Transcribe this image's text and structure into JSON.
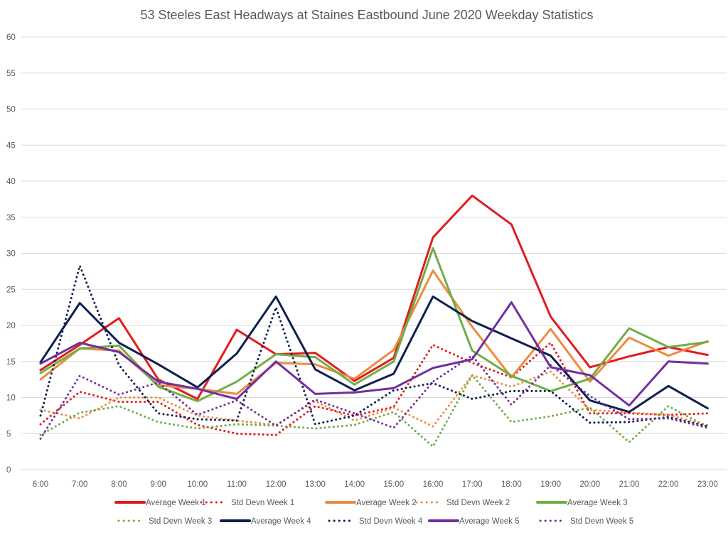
{
  "chart_data": {
    "type": "line",
    "title": "53 Steeles East Headways at Staines Eastbound June 2020 Weekday Statistics",
    "xlabel": "",
    "ylabel": "",
    "ylim": [
      0,
      60
    ],
    "yticks": [
      0,
      5,
      10,
      15,
      20,
      25,
      30,
      35,
      40,
      45,
      50,
      55,
      60
    ],
    "grid": true,
    "legend_position": "bottom",
    "categories": [
      "6:00",
      "7:00",
      "8:00",
      "9:00",
      "10:00",
      "11:00",
      "12:00",
      "13:00",
      "14:00",
      "15:00",
      "16:00",
      "17:00",
      "18:00",
      "19:00",
      "20:00",
      "21:00",
      "22:00",
      "23:00"
    ],
    "series": [
      {
        "name": "Average Week 1",
        "color": "#e31a1c",
        "style": "solid",
        "values": [
          13.8,
          17.3,
          21.0,
          12.5,
          9.8,
          19.4,
          16.0,
          16.2,
          12.3,
          15.5,
          32.2,
          38.0,
          34.0,
          21.2,
          14.2,
          15.7,
          17.0,
          15.9
        ]
      },
      {
        "name": "Std Devn Week 1",
        "color": "#e31a1c",
        "style": "dotted",
        "values": [
          6.3,
          10.8,
          9.4,
          9.4,
          6.2,
          5.0,
          4.8,
          8.8,
          7.5,
          8.7,
          17.3,
          14.8,
          12.8,
          17.6,
          7.8,
          7.8,
          7.6,
          7.8
        ]
      },
      {
        "name": "Average Week 2",
        "color": "#ed8b3f",
        "style": "solid",
        "values": [
          12.5,
          16.8,
          16.5,
          11.7,
          11.2,
          10.5,
          14.8,
          14.6,
          12.6,
          16.6,
          27.6,
          19.8,
          12.8,
          19.5,
          12.2,
          18.3,
          15.8,
          17.8
        ]
      },
      {
        "name": "Std Devn Week 2",
        "color": "#ed8b3f",
        "style": "dotted",
        "values": [
          8.3,
          7.1,
          10.0,
          10.0,
          7.5,
          6.8,
          6.2,
          9.5,
          6.8,
          8.6,
          6.0,
          13.1,
          11.5,
          13.6,
          8.3,
          7.9,
          7.6,
          6.2
        ]
      },
      {
        "name": "Average Week 3",
        "color": "#70ad47",
        "style": "solid",
        "values": [
          13.4,
          16.8,
          17.2,
          11.5,
          9.5,
          12.2,
          16.0,
          15.6,
          11.8,
          15.0,
          30.7,
          16.5,
          13.0,
          10.9,
          12.6,
          19.6,
          17.0,
          17.7
        ]
      },
      {
        "name": "Std Devn Week 3",
        "color": "#70ad47",
        "style": "dotted",
        "values": [
          4.8,
          7.9,
          8.8,
          6.6,
          5.7,
          6.3,
          6.1,
          5.7,
          6.2,
          8.0,
          3.2,
          13.1,
          6.6,
          7.4,
          8.6,
          3.8,
          8.8,
          5.9
        ]
      },
      {
        "name": "Average Week 4",
        "color": "#0d1f4f",
        "style": "solid",
        "values": [
          14.9,
          23.1,
          17.6,
          14.6,
          11.4,
          16.1,
          24.0,
          13.9,
          11.0,
          13.3,
          24.0,
          20.6,
          18.2,
          15.8,
          9.6,
          8.0,
          11.6,
          8.5
        ]
      },
      {
        "name": "Std Devn Week 4",
        "color": "#0d1f4f",
        "style": "dotted",
        "values": [
          7.5,
          28.3,
          14.5,
          7.8,
          7.0,
          6.8,
          22.5,
          6.3,
          7.5,
          11.0,
          12.0,
          9.8,
          10.9,
          10.9,
          6.5,
          6.6,
          7.3,
          6.0
        ]
      },
      {
        "name": "Average Week 5",
        "color": "#7030a0",
        "style": "solid",
        "values": [
          14.7,
          17.6,
          16.3,
          12.2,
          11.2,
          9.8,
          15.0,
          10.5,
          10.7,
          11.3,
          14.1,
          15.3,
          23.2,
          14.2,
          13.1,
          8.9,
          15.0,
          14.7
        ]
      },
      {
        "name": "Std Devn Week 5",
        "color": "#7030a0",
        "style": "dotted",
        "values": [
          4.3,
          13.0,
          10.4,
          12.1,
          7.6,
          9.6,
          6.1,
          9.7,
          7.8,
          5.8,
          12.2,
          15.8,
          9.0,
          14.5,
          10.2,
          7.0,
          7.1,
          5.8
        ]
      }
    ]
  }
}
